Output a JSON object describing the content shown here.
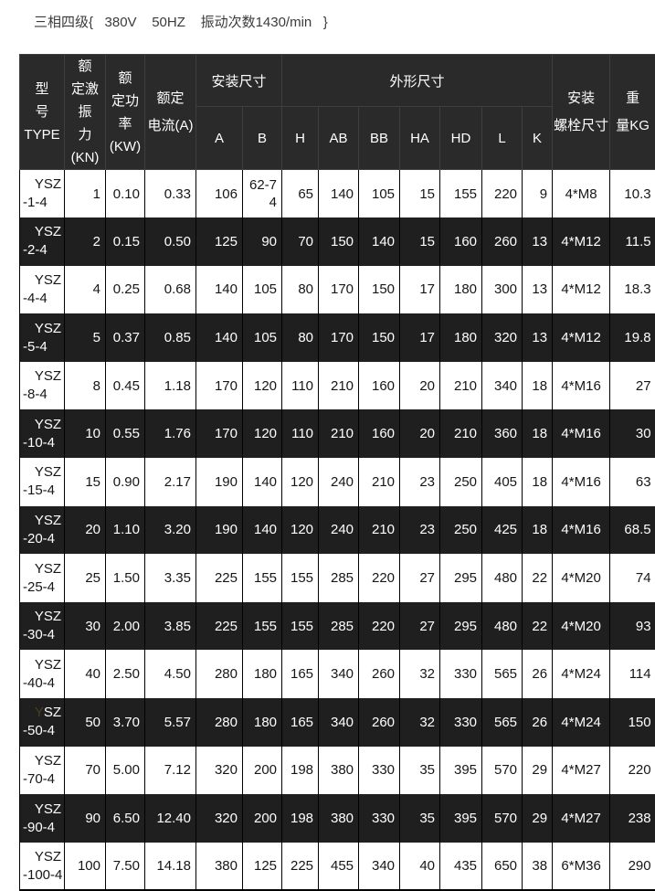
{
  "title": "三相四级{   380V    50HZ    振动次数1430/min   }",
  "table": {
    "header": {
      "type_lines": [
        "型",
        "号",
        "TYPE"
      ],
      "force_lines": [
        "额",
        "定激振",
        "力(KN)"
      ],
      "power_lines": [
        "额",
        "定功率",
        "(KW)"
      ],
      "current_lines": [
        "额定",
        "电流(A)"
      ],
      "install_group": "安装尺寸",
      "outline_group": "外形尺寸",
      "dim_cols": [
        "A",
        "B",
        "H",
        "AB",
        "BB",
        "HA",
        "HD",
        "L",
        "K"
      ],
      "bolt_lines": [
        "安装",
        "螺栓尺寸"
      ],
      "weight_lines": [
        "重",
        "量KG"
      ]
    },
    "rows": [
      {
        "type": [
          "YSZ",
          "-1-4"
        ],
        "kn": "1",
        "kw": "0.10",
        "amp": "0.33",
        "a": "106",
        "b": "62-74",
        "h": "65",
        "ab": "140",
        "bb": "105",
        "ha": "15",
        "hd": "155",
        "l": "220",
        "k": "9",
        "bolt": "4*M8",
        "kg": "10.3",
        "dark": false
      },
      {
        "type": [
          "YSZ",
          "-2-4"
        ],
        "kn": "2",
        "kw": "0.15",
        "amp": "0.50",
        "a": "125",
        "b": "90",
        "h": "70",
        "ab": "150",
        "bb": "140",
        "ha": "15",
        "hd": "160",
        "l": "260",
        "k": "13",
        "bolt": "4*M12",
        "kg": "11.5",
        "dark": true
      },
      {
        "type": [
          "YSZ",
          "-4-4"
        ],
        "kn": "4",
        "kw": "0.25",
        "amp": "0.68",
        "a": "140",
        "b": "105",
        "h": "80",
        "ab": "170",
        "bb": "150",
        "ha": "17",
        "hd": "180",
        "l": "300",
        "k": "13",
        "bolt": "4*M12",
        "kg": "18.3",
        "dark": false
      },
      {
        "type": [
          "YSZ",
          "-5-4"
        ],
        "kn": "5",
        "kw": "0.37",
        "amp": "0.85",
        "a": "140",
        "b": "105",
        "h": "80",
        "ab": "170",
        "bb": "150",
        "ha": "17",
        "hd": "180",
        "l": "320",
        "k": "13",
        "bolt": "4*M12",
        "kg": "19.8",
        "dark": true
      },
      {
        "type": [
          "YSZ",
          "-8-4"
        ],
        "kn": "8",
        "kw": "0.45",
        "amp": "1.18",
        "a": "170",
        "b": "120",
        "h": "110",
        "ab": "210",
        "bb": "160",
        "ha": "20",
        "hd": "210",
        "l": "340",
        "k": "18",
        "bolt": "4*M16",
        "kg": "27",
        "dark": false
      },
      {
        "type": [
          "YSZ",
          "-10-4"
        ],
        "kn": "10",
        "kw": "0.55",
        "amp": "1.76",
        "a": "170",
        "b": "120",
        "h": "110",
        "ab": "210",
        "bb": "160",
        "ha": "20",
        "hd": "210",
        "l": "360",
        "k": "18",
        "bolt": "4*M16",
        "kg": "30",
        "dark": true
      },
      {
        "type": [
          "YSZ",
          "-15-4"
        ],
        "kn": "15",
        "kw": "0.90",
        "amp": "2.17",
        "a": "190",
        "b": "140",
        "h": "120",
        "ab": "240",
        "bb": "210",
        "ha": "23",
        "hd": "250",
        "l": "405",
        "k": "18",
        "bolt": "4*M16",
        "kg": "63",
        "dark": false
      },
      {
        "type": [
          "YSZ",
          "-20-4"
        ],
        "kn": "20",
        "kw": "1.10",
        "amp": "3.20",
        "a": "190",
        "b": "140",
        "h": "120",
        "ab": "240",
        "bb": "210",
        "ha": "23",
        "hd": "250",
        "l": "425",
        "k": "18",
        "bolt": "4*M16",
        "kg": "68.5",
        "dark": true
      },
      {
        "type": [
          "YSZ",
          "-25-4"
        ],
        "kn": "25",
        "kw": "1.50",
        "amp": "3.35",
        "a": "225",
        "b": "155",
        "h": "155",
        "ab": "285",
        "bb": "220",
        "ha": "27",
        "hd": "295",
        "l": "480",
        "k": "22",
        "bolt": "4*M20",
        "kg": "74",
        "dark": false
      },
      {
        "type": [
          "YSZ",
          "-30-4"
        ],
        "kn": "30",
        "kw": "2.00",
        "amp": "3.85",
        "a": "225",
        "b": "155",
        "h": "155",
        "ab": "285",
        "bb": "220",
        "ha": "27",
        "hd": "295",
        "l": "480",
        "k": "22",
        "bolt": "4*M20",
        "kg": "93",
        "dark": true
      },
      {
        "type": [
          "YSZ",
          "-40-4"
        ],
        "kn": "40",
        "kw": "2.50",
        "amp": "4.50",
        "a": "280",
        "b": "180",
        "h": "165",
        "ab": "340",
        "bb": "260",
        "ha": "32",
        "hd": "330",
        "l": "565",
        "k": "26",
        "bolt": "4*M24",
        "kg": "114",
        "dark": false
      },
      {
        "type": [
          "YSZ",
          "-50-4"
        ],
        "kn": "50",
        "kw": "3.70",
        "amp": "5.57",
        "a": "280",
        "b": "180",
        "h": "165",
        "ab": "340",
        "bb": "260",
        "ha": "32",
        "hd": "330",
        "l": "565",
        "k": "26",
        "bolt": "4*M24",
        "kg": "150",
        "dark": true,
        "faint_y": true
      },
      {
        "type": [
          "YSZ",
          "-70-4"
        ],
        "kn": "70",
        "kw": "5.00",
        "amp": "7.12",
        "a": "320",
        "b": "200",
        "h": "198",
        "ab": "380",
        "bb": "330",
        "ha": "35",
        "hd": "395",
        "l": "570",
        "k": "29",
        "bolt": "4*M27",
        "kg": "220",
        "dark": false
      },
      {
        "type": [
          "YSZ",
          "-90-4"
        ],
        "kn": "90",
        "kw": "6.50",
        "amp": "12.40",
        "a": "320",
        "b": "200",
        "h": "198",
        "ab": "380",
        "bb": "330",
        "ha": "35",
        "hd": "395",
        "l": "570",
        "k": "29",
        "bolt": "4*M27",
        "kg": "238",
        "dark": true
      },
      {
        "type": [
          "YSZ",
          "-100-4"
        ],
        "kn": "100",
        "kw": "7.50",
        "amp": "14.18",
        "a": "380",
        "b": "125",
        "h": "225",
        "ab": "455",
        "bb": "340",
        "ha": "40",
        "hd": "435",
        "l": "650",
        "k": "38",
        "bolt": "6*M36",
        "kg": "290",
        "dark": false
      }
    ]
  }
}
